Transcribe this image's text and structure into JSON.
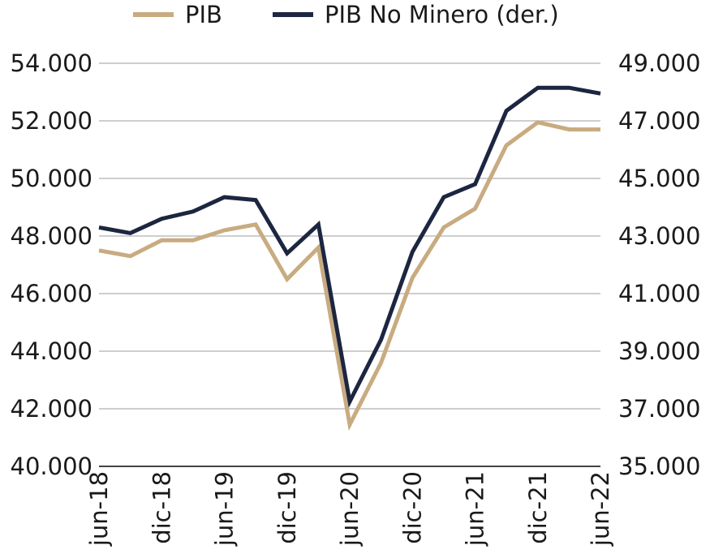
{
  "chart_data": {
    "type": "line",
    "legend_position": "top",
    "grid": true,
    "x": [
      "jun-18",
      "sep-18",
      "dic-18",
      "mar-19",
      "jun-19",
      "sep-19",
      "dic-19",
      "mar-20",
      "jun-20",
      "sep-20",
      "dic-20",
      "mar-21",
      "jun-21",
      "sep-21",
      "dic-21",
      "mar-22",
      "jun-22"
    ],
    "x_tick_labels": [
      "jun-18",
      "dic-18",
      "jun-19",
      "dic-19",
      "jun-20",
      "dic-20",
      "jun-21",
      "dic-21",
      "jun-22"
    ],
    "y_left": {
      "lim": [
        40000,
        54000
      ],
      "ticks": [
        "40.000",
        "42.000",
        "44.000",
        "46.000",
        "48.000",
        "50.000",
        "52.000",
        "54.000"
      ]
    },
    "y_right": {
      "lim": [
        35000,
        49000
      ],
      "ticks": [
        "35.000",
        "37.000",
        "39.000",
        "41.000",
        "43.000",
        "45.000",
        "47.000",
        "49.000"
      ]
    },
    "series": [
      {
        "name": "PIB",
        "axis": "left",
        "color": "#c8ab80",
        "values": [
          47500,
          47300,
          47850,
          47850,
          48200,
          48400,
          46500,
          47600,
          41450,
          43600,
          46550,
          48300,
          48950,
          51150,
          51950,
          51700,
          51700
        ]
      },
      {
        "name": "PIB No Minero (der.)",
        "axis": "right",
        "color": "#1c2640",
        "values": [
          43300,
          43100,
          43600,
          43850,
          44350,
          44250,
          42400,
          43400,
          37250,
          39400,
          42450,
          44350,
          44800,
          47350,
          48150,
          48150,
          47950
        ]
      }
    ]
  }
}
